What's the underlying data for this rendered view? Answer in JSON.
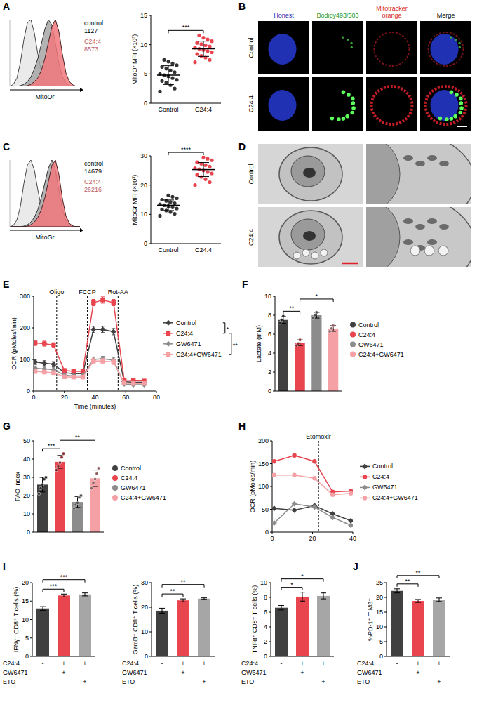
{
  "chart_data": [
    {
      "panel": "A",
      "type": "area",
      "x_label": "MitoOr",
      "xlim": [
        0,
        100
      ],
      "ylim": [
        0,
        100
      ],
      "tick_labels": false,
      "legend": "right",
      "x": [
        0,
        5,
        10,
        15,
        20,
        25,
        30,
        35,
        40,
        45,
        50,
        55,
        60,
        65,
        70,
        75,
        80,
        85,
        90,
        95,
        100
      ],
      "series": [
        {
          "color": "#e6e6e6",
          "values": [
            0,
            3,
            12,
            35,
            70,
            95,
            100,
            80,
            48,
            22,
            9,
            3,
            1,
            0,
            0,
            0,
            0,
            0,
            0,
            0,
            0
          ]
        },
        {
          "name": "control",
          "mfi": 1127,
          "color": "#a6a6a6",
          "values": [
            0,
            0,
            0,
            1,
            3,
            7,
            14,
            26,
            42,
            64,
            86,
            100,
            92,
            64,
            34,
            14,
            5,
            1,
            0,
            0,
            0
          ]
        },
        {
          "name": "C24:4",
          "mfi": 8573,
          "color": "#f0787d",
          "values": [
            0,
            0,
            0,
            0,
            0,
            1,
            3,
            7,
            13,
            24,
            42,
            66,
            90,
            100,
            82,
            48,
            20,
            7,
            2,
            0,
            0
          ]
        }
      ]
    },
    {
      "type": "strip",
      "y_label": "MitoOr MFI (×10³)",
      "categories": [
        "Control",
        "C24:4"
      ],
      "colors": [
        "#333333",
        "#e8454f"
      ],
      "ylim": [
        0,
        15
      ],
      "yticks": [
        0,
        5,
        10,
        15
      ],
      "values": [
        [
          2.0,
          2.5,
          3.1,
          3.5,
          3.8,
          4.0,
          4.3,
          4.6,
          4.8,
          5.0,
          5.3,
          5.6,
          5.9,
          6.2,
          6.5,
          6.8,
          7.1,
          7.4
        ],
        [
          7.0,
          7.4,
          7.8,
          8.1,
          8.4,
          8.7,
          8.9,
          9.1,
          9.3,
          9.5,
          9.7,
          9.9,
          10.1,
          10.3,
          10.6,
          10.9,
          11.2,
          11.6
        ]
      ],
      "means": [
        4.8,
        9.3
      ],
      "errors": [
        1.6,
        1.3
      ],
      "comparisons": [
        {
          "text": "***",
          "between": [
            0,
            1
          ]
        }
      ]
    },
    {
      "panel": "C",
      "type": "area",
      "x_label": "MitoGr",
      "xlim": [
        0,
        100
      ],
      "ylim": [
        0,
        100
      ],
      "tick_labels": false,
      "legend": "right",
      "x": [
        0,
        5,
        10,
        15,
        20,
        25,
        30,
        35,
        40,
        45,
        50,
        55,
        60,
        65,
        70,
        75,
        80,
        85,
        90,
        95,
        100
      ],
      "series": [
        {
          "color": "#e6e6e6",
          "values": [
            0,
            2,
            10,
            30,
            65,
            92,
            100,
            85,
            55,
            28,
            12,
            4,
            1,
            0,
            0,
            0,
            0,
            0,
            0,
            0,
            0
          ]
        },
        {
          "name": "control",
          "mfi": 14679,
          "color": "#a6a6a6",
          "values": [
            0,
            0,
            0,
            0,
            1,
            3,
            7,
            14,
            26,
            44,
            66,
            88,
            100,
            85,
            55,
            26,
            9,
            3,
            1,
            0,
            0
          ]
        },
        {
          "name": "C24:4",
          "mfi": 26216,
          "color": "#f0787d",
          "values": [
            0,
            0,
            0,
            0,
            0,
            1,
            3,
            7,
            14,
            26,
            44,
            68,
            92,
            100,
            78,
            42,
            16,
            5,
            1,
            0,
            0
          ]
        }
      ]
    },
    {
      "type": "strip",
      "y_label": "MitoGr MFI (×10³)",
      "categories": [
        "Control",
        "C24:4"
      ],
      "colors": [
        "#333333",
        "#e8454f"
      ],
      "ylim": [
        0,
        30
      ],
      "yticks": [
        0,
        10,
        20,
        30
      ],
      "values": [
        [
          9.5,
          10.2,
          10.8,
          11.3,
          11.7,
          12.0,
          12.4,
          12.8,
          13.1,
          13.4,
          13.8,
          14.2,
          14.6,
          15.0,
          15.5,
          16.0,
          16.5
        ],
        [
          20.0,
          21.0,
          22.0,
          22.8,
          23.5,
          24.0,
          24.5,
          25.0,
          25.4,
          25.8,
          26.3,
          26.8,
          27.3,
          27.8,
          28.5,
          29.0,
          29.5
        ]
      ],
      "means": [
        13.1,
        25.3
      ],
      "errors": [
        1.8,
        2.4
      ],
      "comparisons": [
        {
          "text": "****",
          "between": [
            0,
            1
          ]
        }
      ]
    },
    {
      "panel": "E",
      "type": "line",
      "y_label": "OCR (pMoles/min)",
      "x_label": "Time (minutes)",
      "xlim": [
        0,
        80
      ],
      "xticks": [
        0,
        20,
        40,
        60,
        80
      ],
      "ylim": [
        0,
        300
      ],
      "yticks": [
        0,
        100,
        200,
        300
      ],
      "legend": "right",
      "x": [
        1,
        7,
        13,
        20,
        26,
        32,
        39,
        45,
        52,
        59,
        65,
        72
      ],
      "annotations": [
        {
          "text": "Oligo",
          "x": 15
        },
        {
          "text": "FCCP",
          "x": 35
        },
        {
          "text": "Rot-AA",
          "x": 55
        }
      ],
      "series": [
        {
          "name": "Control",
          "color": "#404040",
          "marker": "diamond",
          "values": [
            92,
            88,
            85,
            58,
            55,
            55,
            195,
            195,
            188,
            30,
            28,
            28
          ],
          "errors": [
            8,
            8,
            8,
            5,
            5,
            5,
            10,
            10,
            10,
            4,
            4,
            4
          ]
        },
        {
          "name": "C24:4",
          "color": "#e8454f",
          "marker": "square",
          "values": [
            152,
            150,
            145,
            65,
            62,
            62,
            280,
            288,
            280,
            35,
            33,
            32
          ],
          "errors": [
            8,
            8,
            8,
            6,
            6,
            6,
            10,
            10,
            10,
            4,
            4,
            4
          ]
        },
        {
          "name": "GW6471",
          "color": "#8c8c8c",
          "marker": "diamond",
          "values": [
            72,
            70,
            68,
            50,
            48,
            48,
            100,
            102,
            98,
            22,
            20,
            20
          ],
          "errors": [
            6,
            6,
            6,
            5,
            5,
            5,
            8,
            8,
            8,
            3,
            3,
            3
          ]
        },
        {
          "name": "C24:4+GW6471",
          "color": "#f4a0a4",
          "marker": "square",
          "values": [
            62,
            60,
            58,
            45,
            44,
            44,
            95,
            95,
            92,
            25,
            24,
            24
          ],
          "errors": [
            6,
            6,
            6,
            5,
            5,
            5,
            8,
            8,
            8,
            3,
            3,
            3
          ]
        }
      ],
      "comparisons": [
        {
          "text": "*",
          "between": [
            0,
            1
          ]
        },
        {
          "text": "**",
          "between": [
            1,
            3
          ]
        }
      ]
    },
    {
      "panel": "F",
      "type": "bar",
      "y_label": "Lactate (mM)",
      "categories": [
        "Control",
        "C24:4",
        "GW6471",
        "C24:4+GW6471"
      ],
      "colors": [
        "#404040",
        "#e8454f",
        "#8c8c8c",
        "#f4a0a4"
      ],
      "values": [
        7.5,
        5.1,
        8.0,
        6.6
      ],
      "errors": [
        0.35,
        0.3,
        0.3,
        0.3
      ],
      "points": [
        [
          7.2,
          7.5,
          7.9
        ],
        [
          4.8,
          5.0,
          5.4
        ],
        [
          7.7,
          8.0,
          8.3
        ],
        [
          6.3,
          6.6,
          6.9
        ]
      ],
      "ylim": [
        0,
        10
      ],
      "yticks": [
        0,
        2,
        4,
        6,
        8,
        10
      ],
      "tick_labels": "y",
      "legend": "right",
      "comparisons": [
        {
          "text": "**",
          "between": [
            0,
            1
          ]
        },
        {
          "text": "*",
          "between": [
            1,
            3
          ]
        }
      ]
    },
    {
      "panel": "G",
      "type": "bar",
      "y_label": "FAO index",
      "categories": [
        "Control",
        "C24:4",
        "GW6471",
        "C24:4+GW6471"
      ],
      "colors": [
        "#404040",
        "#e8454f",
        "#8c8c8c",
        "#f4a0a4"
      ],
      "values": [
        26,
        38.5,
        16.5,
        29.5
      ],
      "errors": [
        4,
        3.5,
        3,
        4.5
      ],
      "points": [
        [
          21,
          24,
          26,
          29,
          30
        ],
        [
          34,
          36,
          38,
          41,
          43
        ],
        [
          13,
          15,
          16,
          19,
          20
        ],
        [
          24,
          27,
          29,
          32,
          35
        ]
      ],
      "ylim": [
        0,
        50
      ],
      "yticks": [
        0,
        10,
        20,
        30,
        40,
        50
      ],
      "tick_labels": "y",
      "legend": "right",
      "comparisons": [
        {
          "text": "***",
          "between": [
            0,
            1
          ]
        },
        {
          "text": "**",
          "between": [
            1,
            3
          ]
        }
      ]
    },
    {
      "panel": "H",
      "type": "line",
      "y_label": "OCR (pMoles/min)",
      "xlim": [
        0,
        40
      ],
      "xticks": [
        0,
        20,
        40
      ],
      "ylim": [
        0,
        200
      ],
      "yticks": [
        0,
        50,
        100,
        150,
        200
      ],
      "legend": "right",
      "x": [
        1,
        11,
        21,
        30,
        39
      ],
      "annotations": [
        {
          "text": "Etomoxir",
          "x": 23
        }
      ],
      "series": [
        {
          "name": "Control",
          "color": "#404040",
          "marker": "diamond",
          "values": [
            52,
            48,
            58,
            40,
            25
          ]
        },
        {
          "name": "C24:4",
          "color": "#e8454f",
          "marker": "circle",
          "values": [
            155,
            168,
            155,
            88,
            90
          ]
        },
        {
          "name": "GW6471",
          "color": "#8c8c8c",
          "marker": "diamond",
          "values": [
            20,
            62,
            55,
            32,
            15
          ]
        },
        {
          "name": "C24:4+GW6471",
          "color": "#f4a0a4",
          "marker": "circle",
          "values": [
            125,
            125,
            118,
            82,
            85
          ]
        }
      ]
    },
    {
      "panel": "I",
      "type": "bar",
      "y_label": "IFNγ⁺ CD8⁺ T cells (%)",
      "categories": [
        null,
        null,
        null
      ],
      "colors": [
        "#404040",
        "#e8454f",
        "#a6a6a6"
      ],
      "values": [
        13.0,
        16.5,
        16.8
      ],
      "errors": [
        0.5,
        0.4,
        0.4
      ],
      "ylim": [
        0,
        20
      ],
      "yticks": [
        0,
        5,
        10,
        15,
        20
      ],
      "tick_labels": "y",
      "conditions": {
        "rows": [
          "C24:4",
          "GW6471",
          "ETO"
        ],
        "values": [
          [
            "-",
            "+",
            "+"
          ],
          [
            "-",
            "+",
            "-"
          ],
          [
            "-",
            "-",
            "+"
          ]
        ]
      },
      "comparisons": [
        {
          "text": "***",
          "between": [
            0,
            1
          ]
        },
        {
          "text": "***",
          "between": [
            0,
            2
          ]
        }
      ]
    },
    {
      "type": "bar",
      "y_label": "GzmB⁺ CD8⁺ T cells (%)",
      "categories": [
        null,
        null,
        null
      ],
      "colors": [
        "#404040",
        "#e8454f",
        "#a6a6a6"
      ],
      "values": [
        18.6,
        22.8,
        23.5
      ],
      "errors": [
        1.0,
        0.6,
        0.3
      ],
      "ylim": [
        0,
        30
      ],
      "yticks": [
        0,
        10,
        20,
        30
      ],
      "tick_labels": "y",
      "conditions": {
        "rows": [
          "C24:4",
          "GW6471",
          "ETO"
        ],
        "values": [
          [
            "-",
            "+",
            "+"
          ],
          [
            "-",
            "+",
            "-"
          ],
          [
            "-",
            "-",
            "+"
          ]
        ]
      },
      "comparisons": [
        {
          "text": "**",
          "between": [
            0,
            1
          ]
        },
        {
          "text": "**",
          "between": [
            0,
            2
          ]
        }
      ]
    },
    {
      "type": "bar",
      "y_label": "TNFα⁺ CD8⁺ T cells (%)",
      "categories": [
        null,
        null,
        null
      ],
      "colors": [
        "#404040",
        "#e8454f",
        "#a6a6a6"
      ],
      "values": [
        6.6,
        8.1,
        8.2
      ],
      "errors": [
        0.3,
        0.6,
        0.4
      ],
      "ylim": [
        0,
        10
      ],
      "yticks": [
        0,
        2,
        4,
        6,
        8,
        10
      ],
      "tick_labels": "y",
      "conditions": {
        "rows": [
          "C24:4",
          "GW6471",
          "ETO"
        ],
        "values": [
          [
            "-",
            "+",
            "+"
          ],
          [
            "-",
            "+",
            "-"
          ],
          [
            "-",
            "-",
            "+"
          ]
        ]
      },
      "comparisons": [
        {
          "text": "*",
          "between": [
            0,
            1
          ]
        },
        {
          "text": "*",
          "between": [
            0,
            2
          ]
        }
      ]
    },
    {
      "panel": "J",
      "type": "bar",
      "y_label": "%PD-1⁺ TIM3⁺",
      "categories": [
        null,
        null,
        null
      ],
      "colors": [
        "#404040",
        "#e8454f",
        "#a6a6a6"
      ],
      "values": [
        22.2,
        18.8,
        19.2
      ],
      "errors": [
        0.7,
        0.5,
        0.6
      ],
      "ylim": [
        0,
        25
      ],
      "yticks": [
        0,
        5,
        10,
        15,
        20,
        25
      ],
      "tick_labels": "y",
      "conditions": {
        "rows": [
          "C24:4",
          "GW6471",
          "ETO"
        ],
        "values": [
          [
            "-",
            "+",
            "+"
          ],
          [
            "-",
            "+",
            "-"
          ],
          [
            "-",
            "-",
            "+"
          ]
        ]
      },
      "comparisons": [
        {
          "text": "**",
          "between": [
            0,
            1
          ]
        },
        {
          "text": "**",
          "between": [
            0,
            2
          ]
        }
      ]
    }
  ],
  "images": [
    {
      "panel": "B",
      "columns": [
        "Honest",
        "Bodipy493/503",
        "Mitotracker orange",
        "Merge"
      ],
      "rows": [
        "Control",
        "C24:4"
      ]
    },
    {
      "panel": "D",
      "rows": [
        "Control",
        "C24:4"
      ]
    }
  ]
}
